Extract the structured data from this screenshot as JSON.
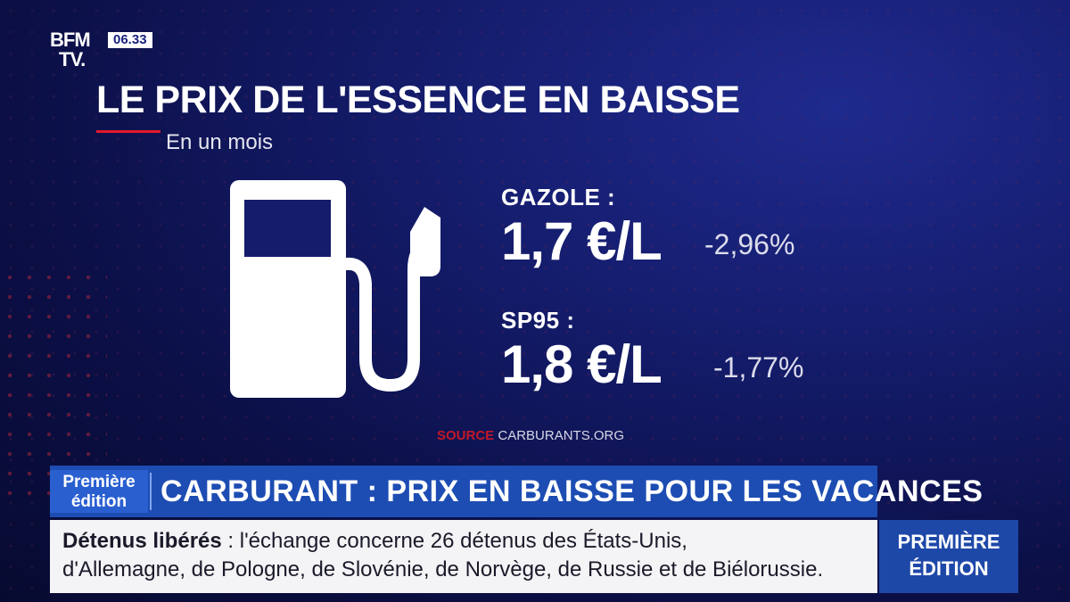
{
  "logo": {
    "line1": "BFM",
    "line2": "TV."
  },
  "clock": "06.33",
  "title": "LE PRIX DE L'ESSENCE EN BAISSE",
  "subtitle": "En un mois",
  "fuels": [
    {
      "label": "GAZOLE :",
      "price": "1,7 €/L",
      "change": "-2,96%"
    },
    {
      "label": "SP95 :",
      "price": "1,8 €/L",
      "change": "-1,77%"
    }
  ],
  "source": {
    "word": "SOURCE",
    "name": "CARBURANTS.ORG"
  },
  "lower_third": {
    "edition_line1": "Première",
    "edition_line2": "édition",
    "headline": "CARBURANT : PRIX EN BAISSE POUR LES VACANCES"
  },
  "ticker": {
    "bold": "Détenus libérés",
    "line1_rest": " : l'échange concerne 26 détenus des États-Unis,",
    "line2": "d'Allemagne, de Pologne, de Slovénie, de Norvège, de Russie et de Biélorussie."
  },
  "badge": {
    "line1": "PREMIÈRE",
    "line2": "ÉDITION"
  },
  "colors": {
    "accent_red": "#e3192a",
    "banner_blue": "#1d4db3",
    "background": "#141c6b"
  },
  "icons": [
    "fuel-pump-icon"
  ]
}
